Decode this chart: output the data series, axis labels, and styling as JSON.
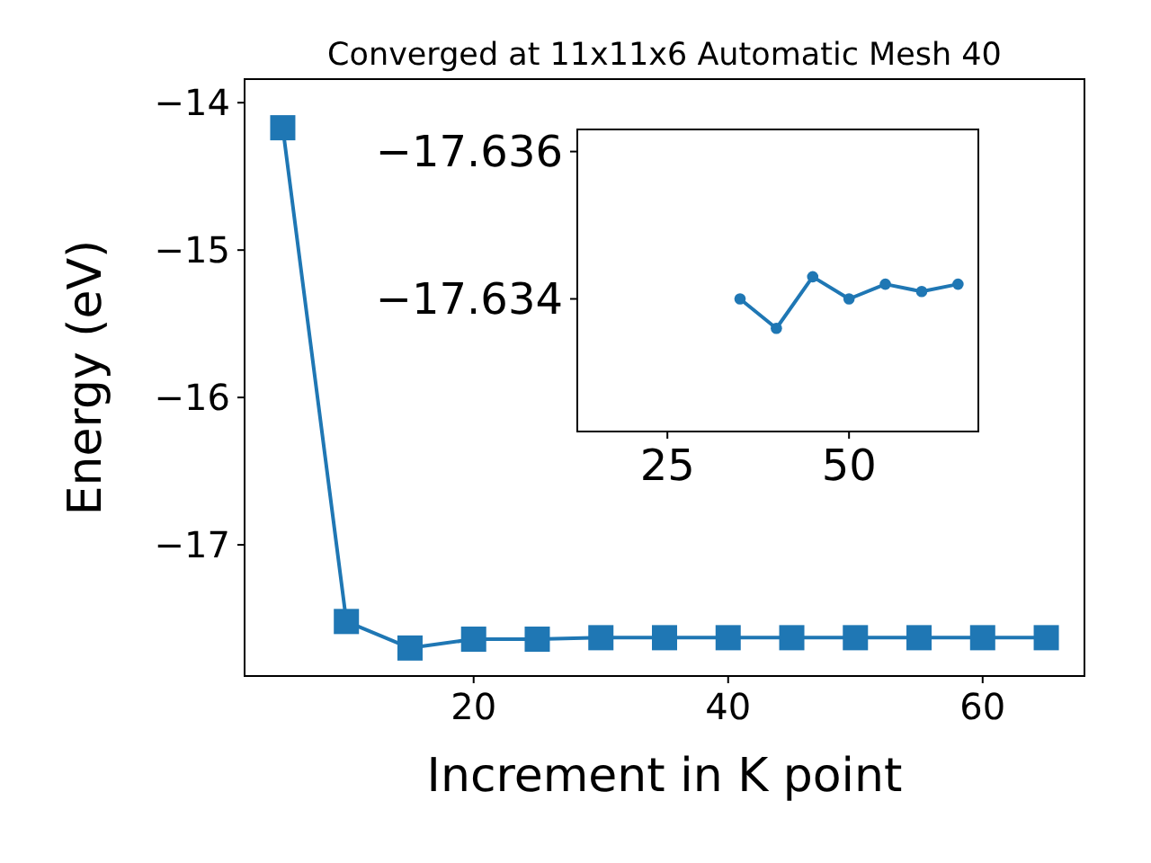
{
  "chart_data": [
    {
      "type": "line",
      "title": "Converged at 11x11x6 Automatic Mesh 40",
      "xlabel": "Increment in K point",
      "ylabel": "Energy (eV)",
      "xlim": [
        2,
        68
      ],
      "xticks": [
        20,
        40,
        60
      ],
      "ylim": [
        -17.89,
        -13.84
      ],
      "yticks": [
        {
          "value": -17,
          "label": "−17"
        },
        {
          "value": -16,
          "label": "−16"
        },
        {
          "value": -15,
          "label": "−15"
        },
        {
          "value": -14,
          "label": "−14"
        }
      ],
      "marker": "square",
      "line_style": "solid",
      "series": [
        {
          "color": "#1f77b4",
          "x": [
            5,
            10,
            15,
            20,
            25,
            30,
            35,
            40,
            45,
            50,
            55,
            60,
            65
          ],
          "values": [
            -14.17,
            -17.52,
            -17.7,
            -17.64,
            -17.64,
            -17.63,
            -17.63,
            -17.63,
            -17.63,
            -17.63,
            -17.63,
            -17.63,
            -17.63
          ]
        }
      ]
    },
    {
      "type": "line",
      "xlim": [
        12.6,
        67.8
      ],
      "xticks": [
        25,
        50
      ],
      "ylim": [
        -17.6322,
        -17.6363
      ],
      "yticks": [
        {
          "value": -17.636,
          "label": "−17.636"
        },
        {
          "value": -17.634,
          "label": "−17.634"
        }
      ],
      "marker": "circle",
      "line_style": "solid",
      "series": [
        {
          "color": "#1f77b4",
          "x": [
            35,
            40,
            45,
            50,
            55,
            60,
            65
          ],
          "values": [
            -17.634,
            -17.6336,
            -17.6343,
            -17.634,
            -17.6342,
            -17.6341,
            -17.6342
          ]
        }
      ]
    }
  ]
}
